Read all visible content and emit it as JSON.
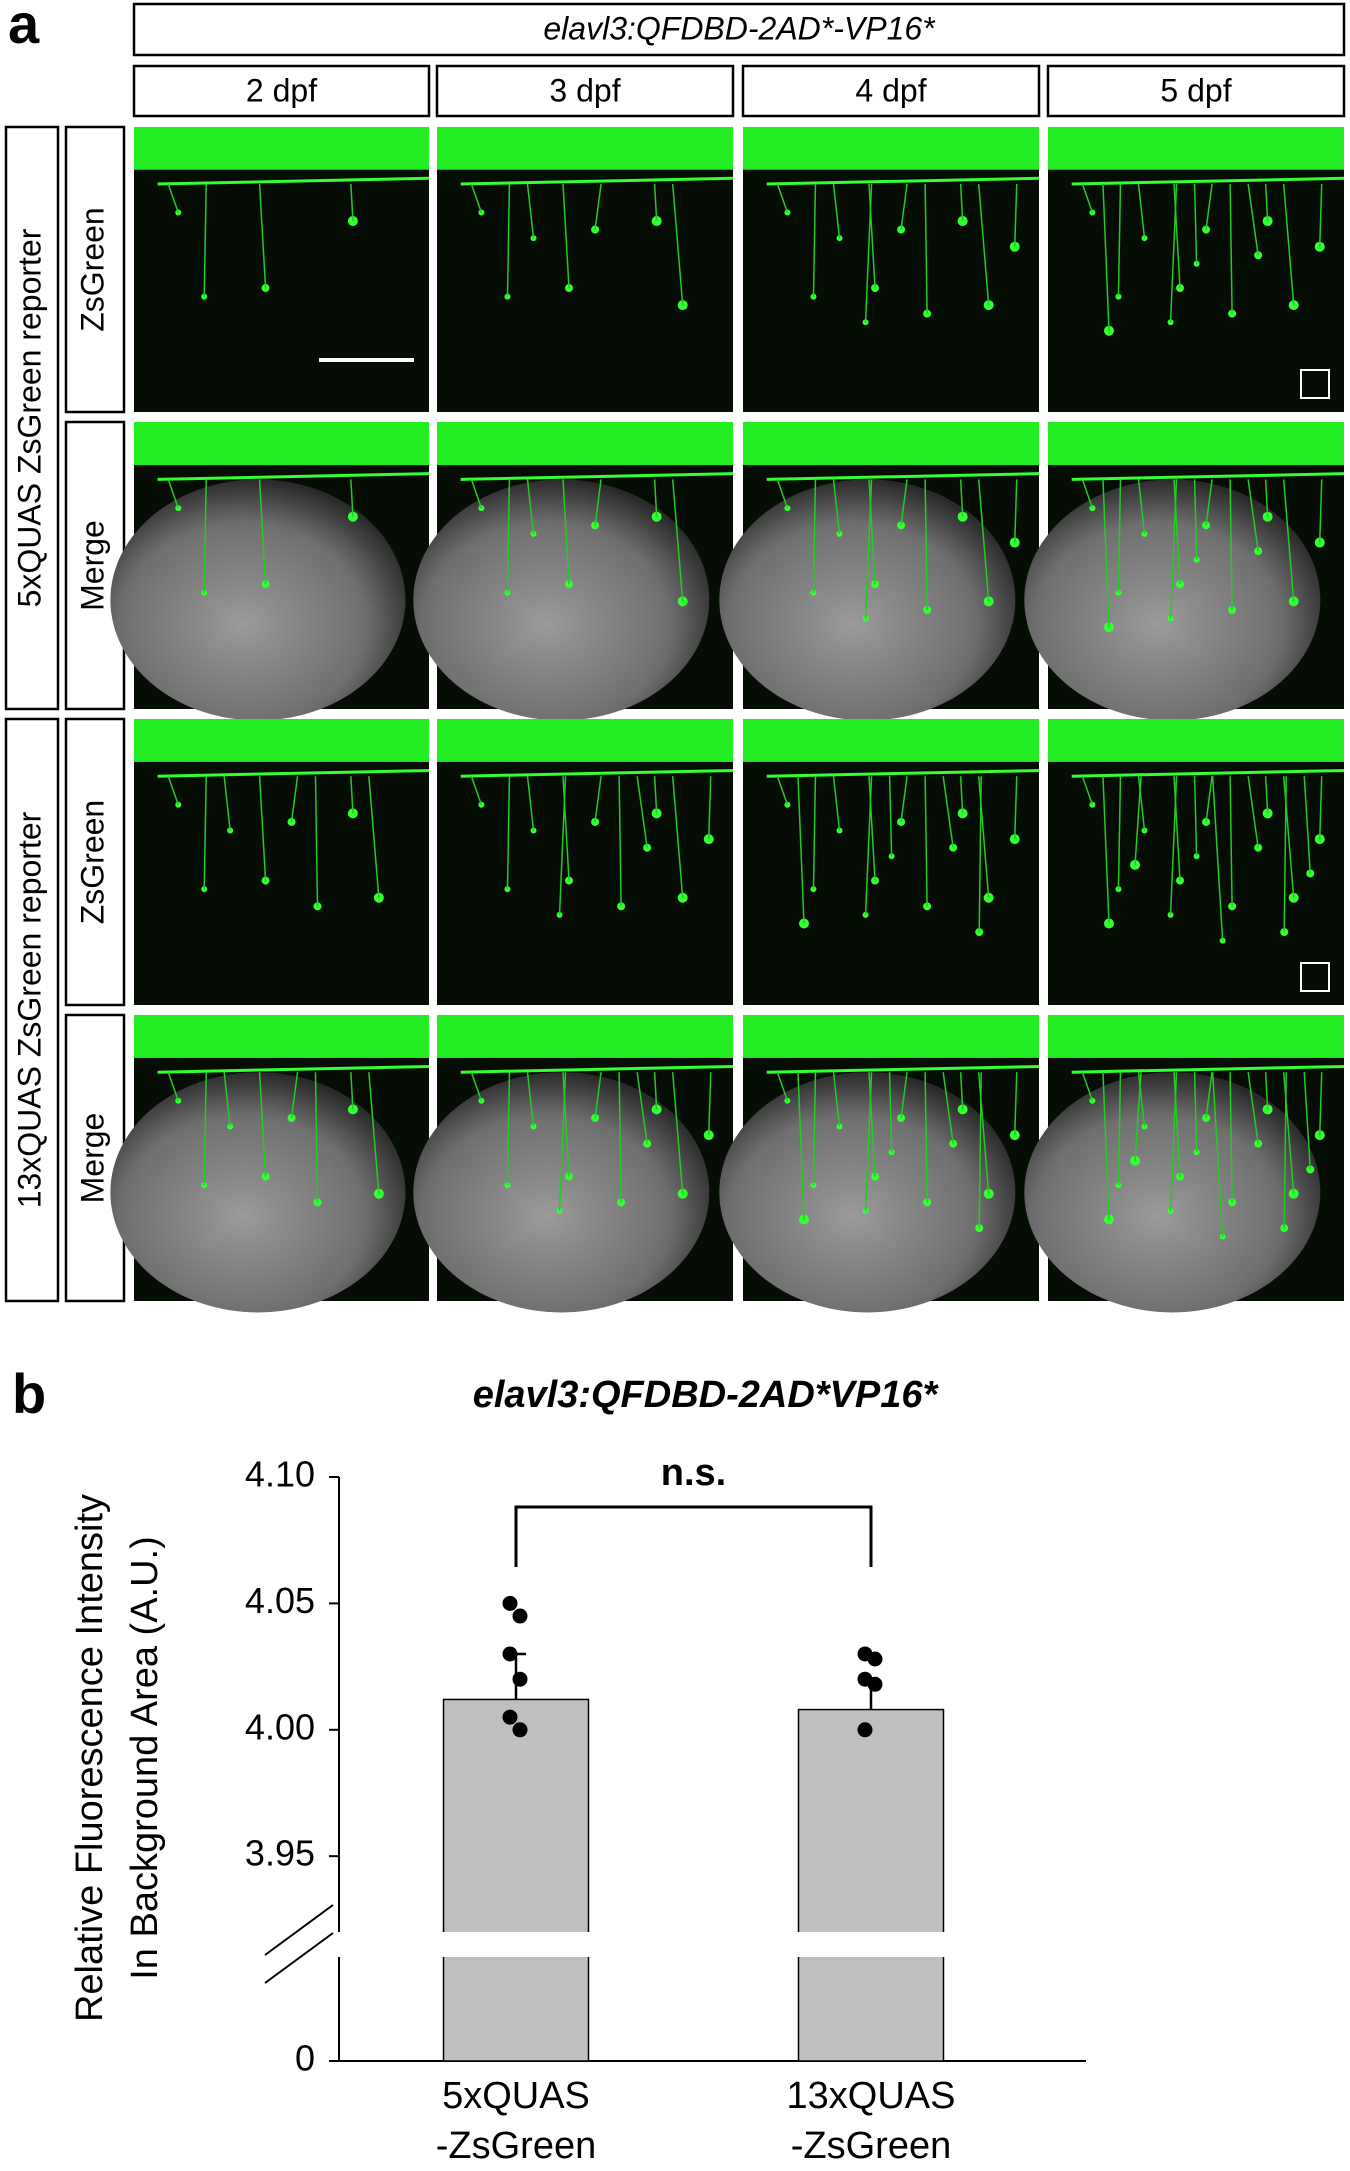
{
  "panel_a": {
    "label": "a",
    "title": "elavl3:QFDBD-2AD*-VP16*",
    "columns": [
      "2 dpf",
      "3 dpf",
      "4 dpf",
      "5 dpf"
    ],
    "row_groups": [
      {
        "label": "5xQUAS ZsGreen reporter",
        "rows": [
          "ZsGreen",
          "Merge"
        ]
      },
      {
        "label": "13xQUAS ZsGreen reporter",
        "rows": [
          "ZsGreen",
          "Merge"
        ]
      }
    ]
  },
  "chart_data": {
    "type": "bar",
    "panel_label": "b",
    "title": "elavl3:QFDBD-2AD*VP16*",
    "y_label": [
      "Relative Fluorescence Intensity",
      "In Background Area (A.U.)"
    ],
    "categories": [
      [
        "5xQUAS",
        "-ZsGreen"
      ],
      [
        "13xQUAS",
        "-ZsGreen"
      ]
    ],
    "values": [
      4.012,
      4.008
    ],
    "errors": [
      0.018,
      0.011
    ],
    "points": [
      [
        4.05,
        4.045,
        4.03,
        4.02,
        4.005,
        4.0
      ],
      [
        4.03,
        4.028,
        4.02,
        4.018,
        4.0
      ]
    ],
    "color": "#bfbfbf",
    "ylim": [
      0,
      4.1
    ],
    "y_break": 3.92,
    "yticks": [
      0,
      3.95,
      {
        "value": 4,
        "label": "4.00"
      },
      4.05,
      {
        "value": 4.1,
        "label": "4.10"
      }
    ],
    "annotation": "n.s."
  }
}
